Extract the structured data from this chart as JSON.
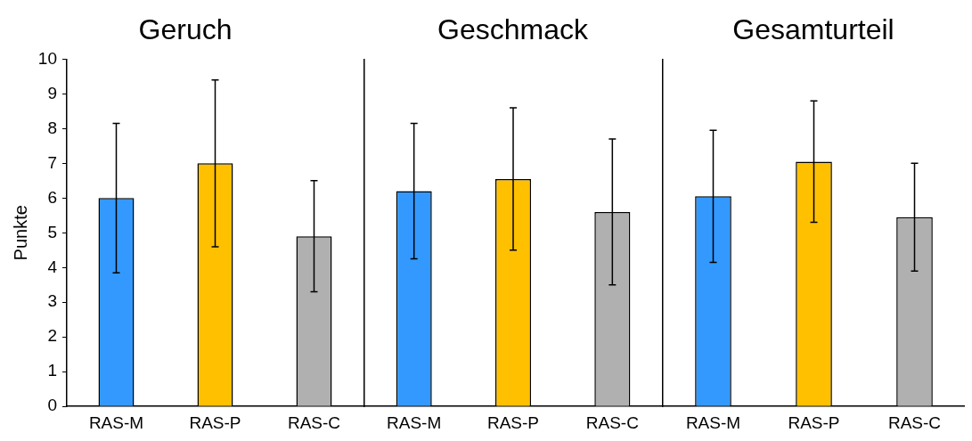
{
  "chart_data": [
    {
      "type": "bar",
      "title": "Geruch",
      "ylabel": "Punkte",
      "categories": [
        "RAS-M",
        "RAS-P",
        "RAS-C"
      ],
      "values": [
        6.0,
        7.0,
        4.9
      ],
      "errors": [
        2.15,
        2.4,
        1.6
      ],
      "colors": [
        "#3399ff",
        "#ffc000",
        "#b0b0b0"
      ],
      "ylim": [
        0,
        10
      ],
      "yticks": [
        0,
        1,
        2,
        3,
        4,
        5,
        6,
        7,
        8,
        9,
        10
      ],
      "grid": false,
      "legend": false
    },
    {
      "type": "bar",
      "title": "Geschmack",
      "categories": [
        "RAS-M",
        "RAS-P",
        "RAS-C"
      ],
      "values": [
        6.2,
        6.55,
        5.6
      ],
      "errors": [
        1.95,
        2.05,
        2.1
      ],
      "colors": [
        "#3399ff",
        "#ffc000",
        "#b0b0b0"
      ],
      "ylim": [
        0,
        10
      ],
      "yticks": [
        0,
        1,
        2,
        3,
        4,
        5,
        6,
        7,
        8,
        9,
        10
      ],
      "grid": false,
      "legend": false,
      "tick_labels": "x"
    },
    {
      "type": "bar",
      "title": "Gesamturteil",
      "categories": [
        "RAS-M",
        "RAS-P",
        "RAS-C"
      ],
      "values": [
        6.05,
        7.05,
        5.45
      ],
      "errors": [
        1.9,
        1.75,
        1.55
      ],
      "colors": [
        "#3399ff",
        "#ffc000",
        "#b0b0b0"
      ],
      "ylim": [
        0,
        10
      ],
      "yticks": [
        0,
        1,
        2,
        3,
        4,
        5,
        6,
        7,
        8,
        9,
        10
      ],
      "grid": false,
      "legend": false,
      "tick_labels": "x"
    }
  ]
}
